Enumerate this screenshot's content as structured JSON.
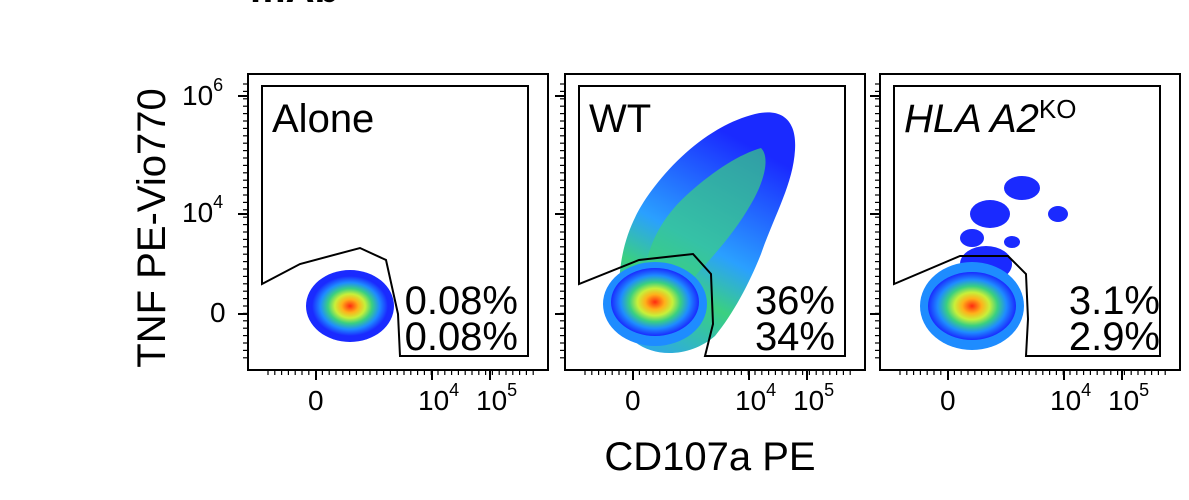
{
  "header_fragment": "mAb",
  "colors": {
    "density_low": "#1a2aff",
    "density_mid_low": "#2aa0ff",
    "density_mid": "#55e06a",
    "density_mid_high": "#ffd21a",
    "density_high": "#ff2a10",
    "frame": "#000000"
  },
  "chart_data": {
    "type": "scatter",
    "subtype": "flow-cytometry-density",
    "xlabel": "CD107a PE",
    "ylabel": "TNF PE-Vio770",
    "x_ticks": [
      {
        "value": 0,
        "label": "0",
        "sup": ""
      },
      {
        "value": 10000,
        "label": "10",
        "sup": "4"
      },
      {
        "value": 100000,
        "label": "10",
        "sup": "5"
      }
    ],
    "y_ticks": [
      {
        "value": 0,
        "label": "0",
        "sup": ""
      },
      {
        "value": 10000,
        "label": "10",
        "sup": "4"
      },
      {
        "value": 1000000,
        "label": "10",
        "sup": "6"
      }
    ],
    "panels": [
      {
        "name": "Alone",
        "name_main": "Alone",
        "name_sup": "",
        "italic": false,
        "gated_percent_top": "0.08%",
        "gated_percent_bottom": "0.08%",
        "density": "compact-single-population",
        "spread": "low"
      },
      {
        "name": "WT",
        "name_main": "WT",
        "name_sup": "",
        "italic": false,
        "gated_percent_top": "36%",
        "gated_percent_bottom": "34%",
        "density": "large-double-positive-smear",
        "spread": "high"
      },
      {
        "name": "HLA A2KO",
        "name_main": "HLA A2",
        "name_sup": "KO",
        "italic": true,
        "gated_percent_top": "3.1%",
        "gated_percent_bottom": "2.9%",
        "density": "main-population-with-sparse-clusters",
        "spread": "medium"
      }
    ]
  }
}
